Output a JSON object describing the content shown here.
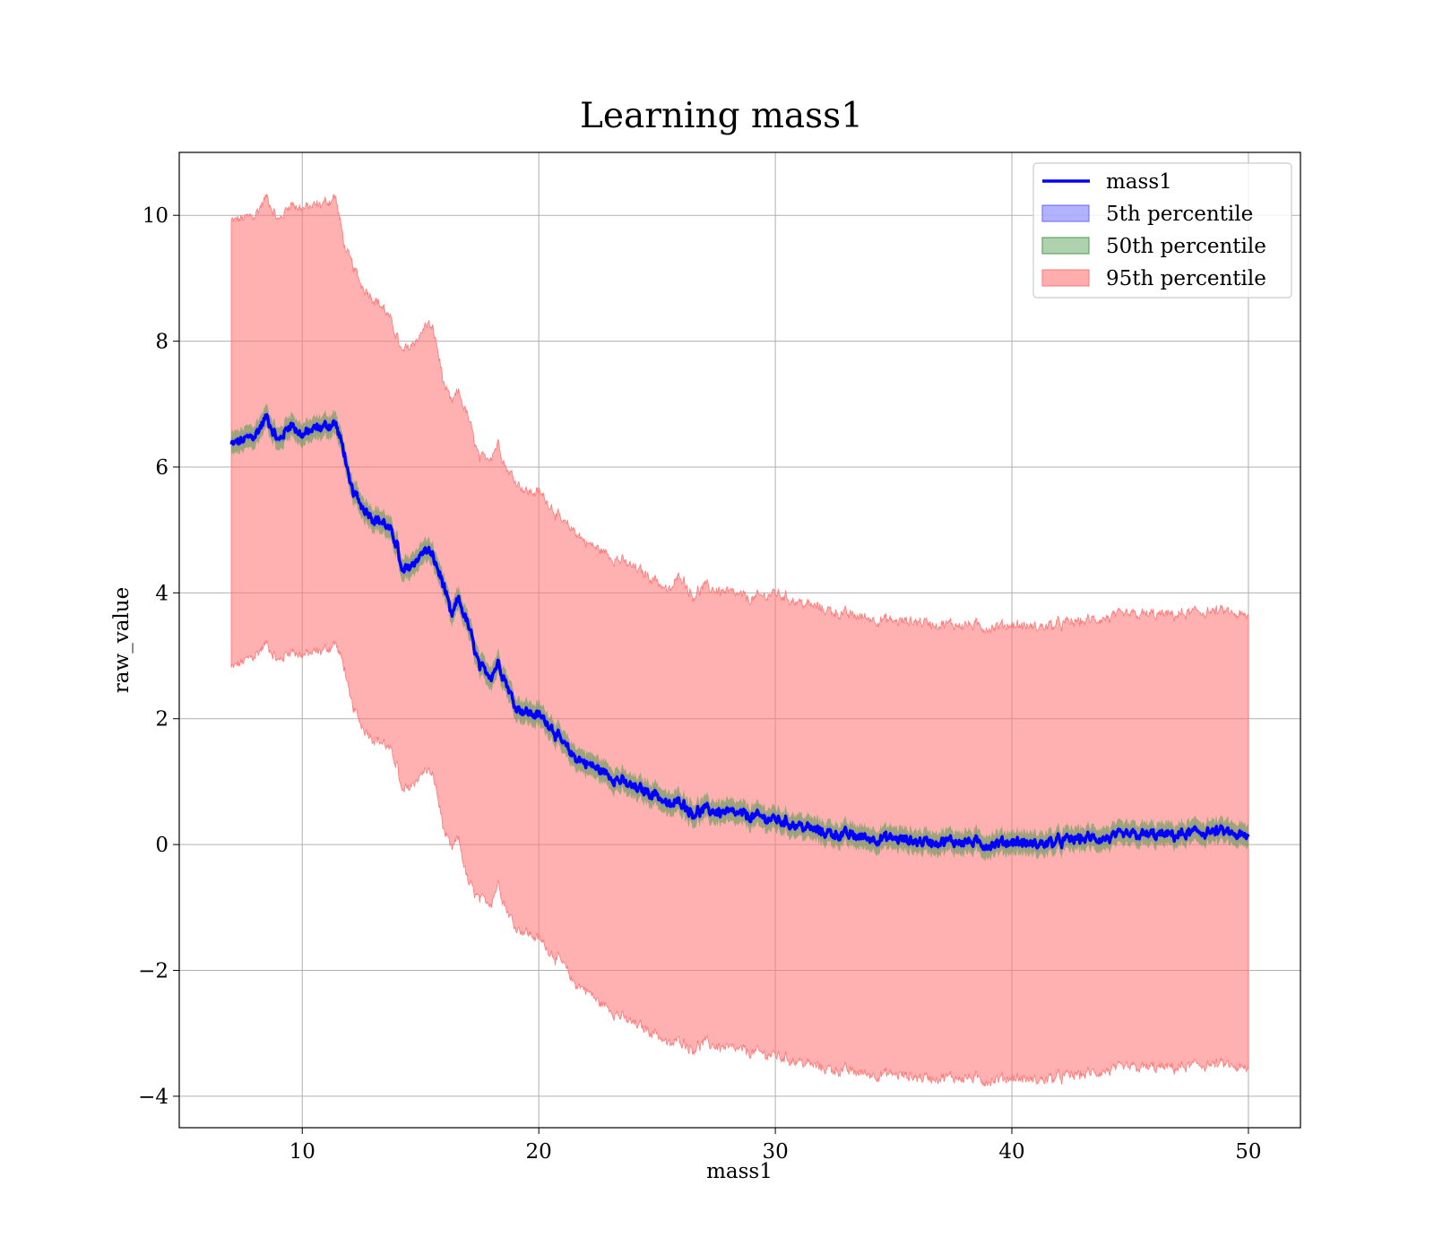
{
  "chart_data": {
    "type": "line",
    "title": "Learning mass1",
    "xlabel": "mass1",
    "ylabel": "raw_value",
    "xlim": [
      4.8,
      52.2
    ],
    "ylim": [
      -4.5,
      11.0
    ],
    "xticks": [
      10,
      20,
      30,
      40,
      50
    ],
    "xtick_labels": [
      "10",
      "20",
      "30",
      "40",
      "50"
    ],
    "yticks": [
      -4,
      -2,
      0,
      2,
      4,
      6,
      8,
      10
    ],
    "ytick_labels": [
      "−4",
      "−2",
      "0",
      "2",
      "4",
      "6",
      "8",
      "10"
    ],
    "grid": true,
    "legend_position": "upper right",
    "colors": {
      "line": "#0000ff",
      "band_5": "#6666ff",
      "band_50": "#4c9a4c",
      "band_95": "#ff7777"
    },
    "x": [
      7.0,
      8.0,
      8.5,
      9.0,
      9.5,
      10.0,
      10.5,
      11.0,
      11.4,
      11.8,
      12.0,
      12.5,
      13.0,
      13.5,
      14.0,
      14.2,
      14.5,
      15.0,
      15.3,
      15.6,
      16.0,
      16.3,
      16.6,
      17.0,
      17.5,
      18.0,
      18.3,
      18.6,
      19.0,
      19.5,
      20.0,
      20.5,
      21.0,
      21.5,
      22.0,
      22.5,
      23.0,
      23.5,
      24.0,
      25.0,
      25.5,
      26.0,
      26.5,
      27.0,
      28.0,
      29.0,
      30.0,
      31.0,
      32.0,
      33.0,
      34.0,
      35.0,
      36.0,
      37.0,
      38.0,
      39.0,
      40.0,
      41.0,
      42.0,
      43.0,
      44.0,
      45.0,
      46.0,
      47.0,
      48.0,
      49.0,
      50.0
    ],
    "series": [
      {
        "name": "mass1",
        "values": [
          6.35,
          6.5,
          6.8,
          6.4,
          6.7,
          6.5,
          6.6,
          6.65,
          6.7,
          6.2,
          5.7,
          5.4,
          5.2,
          5.1,
          4.8,
          4.3,
          4.4,
          4.6,
          4.7,
          4.5,
          4.1,
          3.6,
          3.9,
          3.5,
          2.8,
          2.7,
          2.9,
          2.6,
          2.2,
          2.1,
          2.05,
          1.9,
          1.6,
          1.4,
          1.3,
          1.2,
          1.1,
          1.0,
          0.9,
          0.8,
          0.6,
          0.7,
          0.5,
          0.55,
          0.5,
          0.45,
          0.4,
          0.3,
          0.2,
          0.15,
          0.1,
          0.1,
          0.05,
          0.05,
          0.05,
          0.0,
          0.05,
          0.0,
          0.05,
          0.1,
          0.1,
          0.15,
          0.15,
          0.15,
          0.2,
          0.2,
          0.1
        ]
      }
    ],
    "bands": [
      {
        "name": "5th percentile",
        "half_width": 0.06
      },
      {
        "name": "50th percentile",
        "half_width": 0.18
      },
      {
        "name": "95th percentile",
        "upper": [
          9.9,
          10.0,
          10.3,
          9.9,
          10.2,
          10.1,
          10.15,
          10.2,
          10.3,
          9.5,
          9.3,
          8.9,
          8.7,
          8.5,
          8.1,
          7.8,
          7.9,
          8.1,
          8.3,
          8.1,
          7.3,
          7.0,
          7.2,
          6.8,
          6.1,
          6.2,
          6.4,
          6.0,
          5.8,
          5.6,
          5.6,
          5.4,
          5.1,
          5.0,
          4.8,
          4.7,
          4.6,
          4.5,
          4.4,
          4.2,
          4.0,
          4.3,
          3.95,
          4.1,
          4.0,
          3.9,
          4.0,
          3.85,
          3.75,
          3.65,
          3.6,
          3.55,
          3.55,
          3.5,
          3.5,
          3.45,
          3.5,
          3.45,
          3.5,
          3.55,
          3.6,
          3.65,
          3.65,
          3.65,
          3.7,
          3.7,
          3.6
        ],
        "lower": [
          2.8,
          3.0,
          3.2,
          2.9,
          3.1,
          3.0,
          3.05,
          3.1,
          3.2,
          2.8,
          2.3,
          1.9,
          1.7,
          1.6,
          1.3,
          0.8,
          0.9,
          1.1,
          1.2,
          1.0,
          0.2,
          -0.1,
          0.1,
          -0.6,
          -0.9,
          -0.9,
          -0.6,
          -1.0,
          -1.3,
          -1.4,
          -1.5,
          -1.7,
          -1.9,
          -2.2,
          -2.3,
          -2.5,
          -2.6,
          -2.75,
          -2.85,
          -3.0,
          -3.2,
          -3.1,
          -3.25,
          -3.15,
          -3.25,
          -3.3,
          -3.35,
          -3.45,
          -3.55,
          -3.6,
          -3.65,
          -3.65,
          -3.7,
          -3.7,
          -3.7,
          -3.75,
          -3.7,
          -3.75,
          -3.7,
          -3.65,
          -3.6,
          -3.55,
          -3.55,
          -3.55,
          -3.5,
          -3.5,
          -3.6
        ]
      }
    ],
    "legend": [
      "mass1",
      "5th percentile",
      "50th percentile",
      "95th percentile"
    ]
  }
}
